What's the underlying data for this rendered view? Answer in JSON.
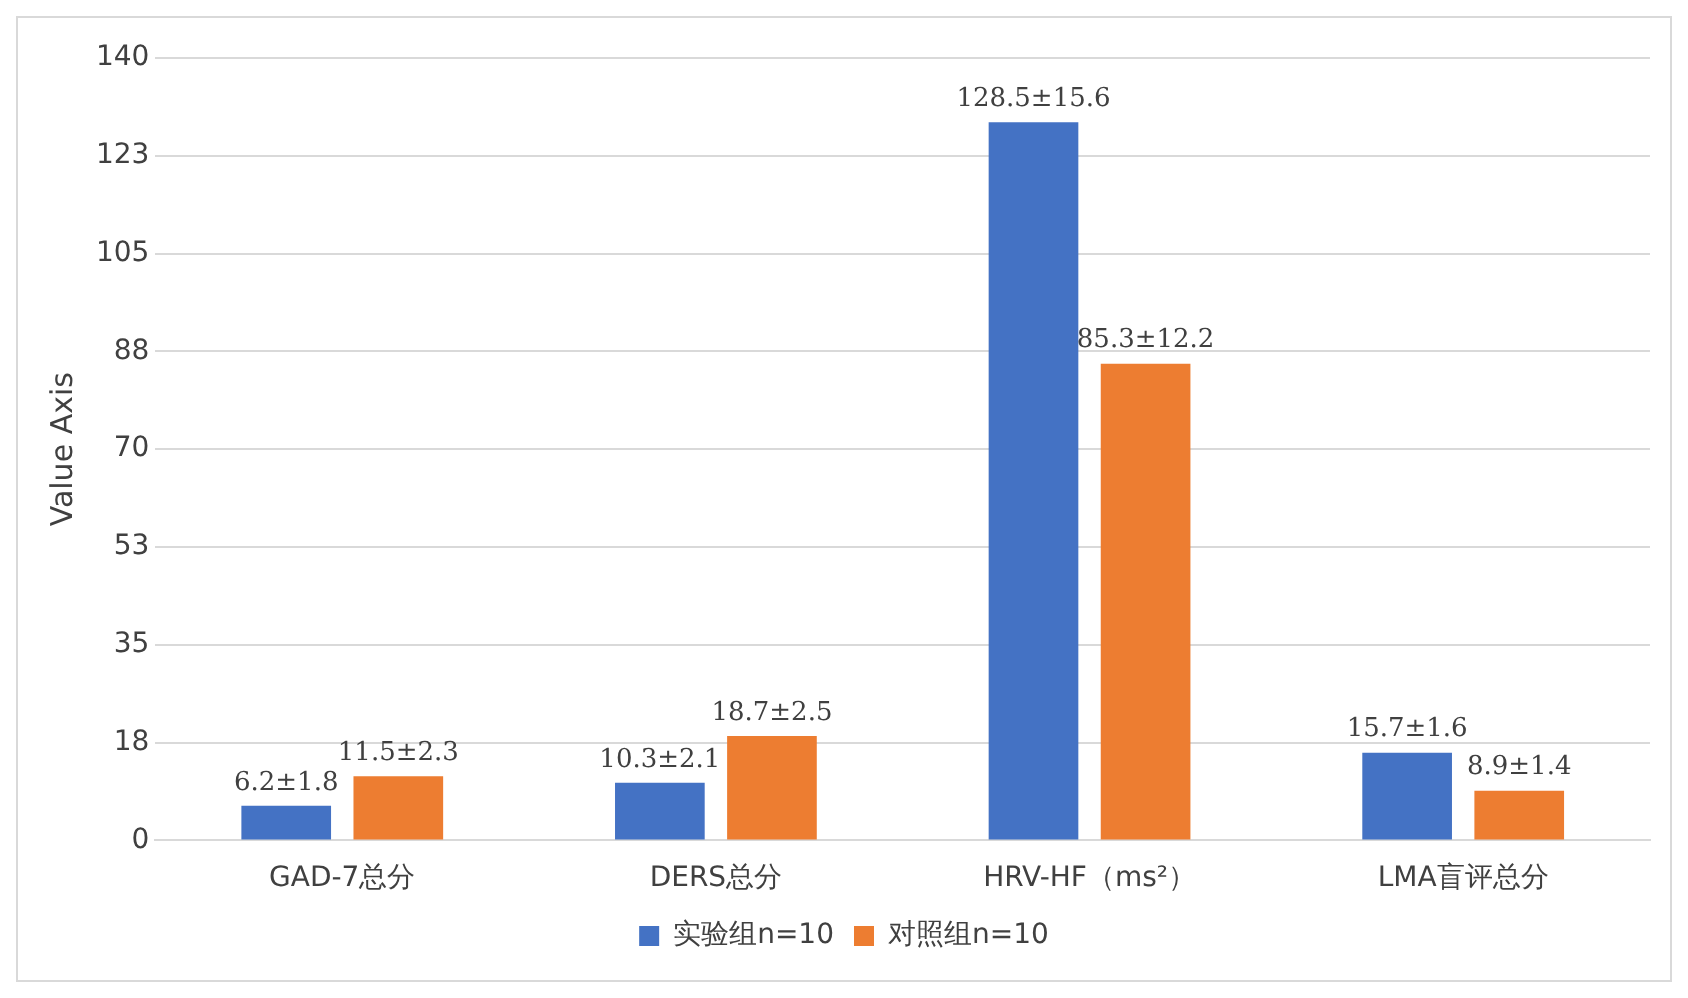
{
  "chart_data": {
    "type": "bar",
    "ylabel": "Value Axis",
    "categories": [
      "GAD-7总分",
      "DERS总分",
      "HRV-HF（ms²）",
      "LMA盲评总分"
    ],
    "series": [
      {
        "name": "实验组n=10",
        "color": "#4472c4",
        "values": [
          6.2,
          10.3,
          128.5,
          15.7
        ],
        "value_labels": [
          "6.2±1.8",
          "10.3±2.1",
          "128.5±15.6",
          "15.7±1.6"
        ]
      },
      {
        "name": "对照组n=10",
        "color": "#ed7d31",
        "values": [
          11.5,
          18.7,
          85.3,
          8.9
        ],
        "value_labels": [
          "11.5±2.3",
          "18.7±2.5",
          "85.3±12.2",
          "8.9±1.4"
        ]
      }
    ],
    "ylim": [
      0,
      140
    ],
    "yticks": [
      0,
      {
        "value": 17.5,
        "label": "18"
      },
      35,
      {
        "value": 52.5,
        "label": "53"
      },
      70,
      {
        "value": 87.5,
        "label": "88"
      },
      105,
      {
        "value": 122.5,
        "label": "123"
      },
      140
    ],
    "grid": "y",
    "legend": "bottom"
  }
}
